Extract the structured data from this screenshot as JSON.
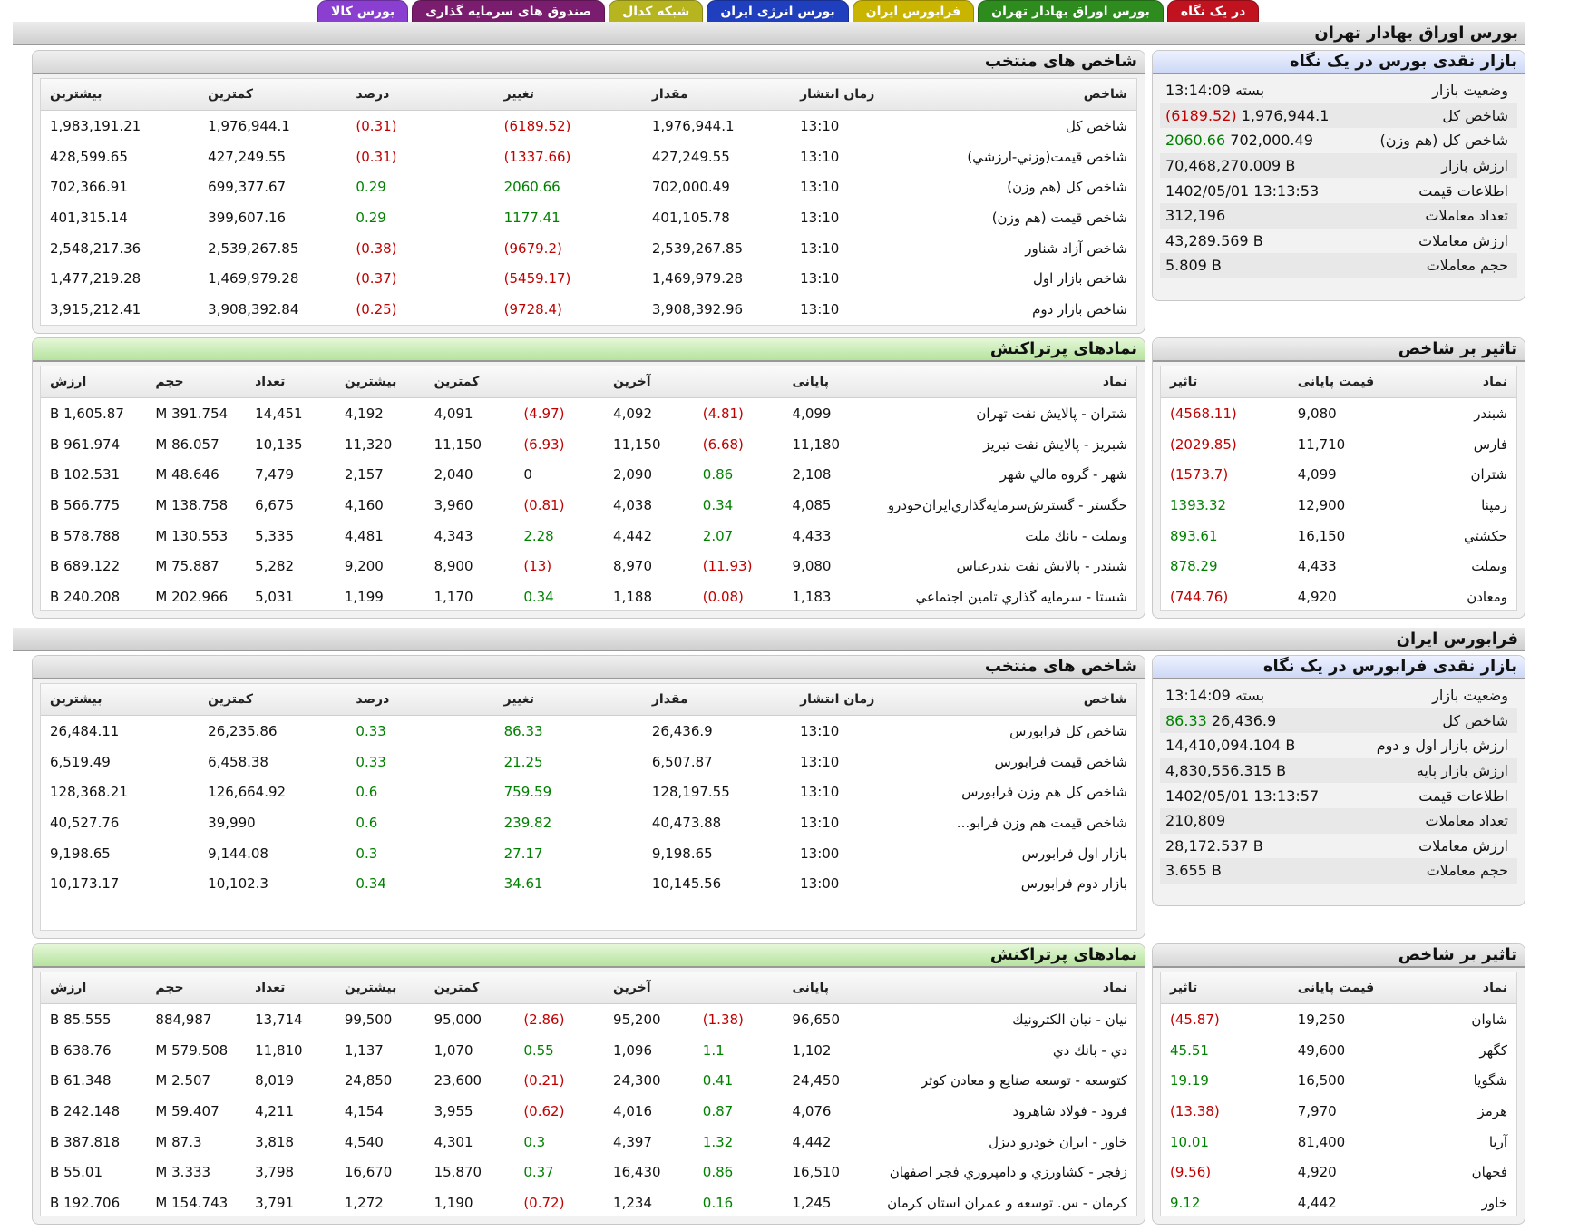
{
  "tabs": [
    {
      "label": "در یک نگاه",
      "color": "#c1121f"
    },
    {
      "label": "بورس اوراق بهادار تهران",
      "color": "#2e8b1e"
    },
    {
      "label": "فرابورس ایران",
      "color": "#c9b400"
    },
    {
      "label": "بورس انرژی ایران",
      "color": "#1f3fbf"
    },
    {
      "label": "شبکه کدال",
      "color": "#b7b51f"
    },
    {
      "label": "صندوق های سرمایه گذاری",
      "color": "#7a1d6e"
    },
    {
      "label": "بورس کالا",
      "color": "#8a3fd1"
    }
  ],
  "tse": {
    "section_title": "بورس اوراق بهادار تهران",
    "summary": {
      "title": "بازار نقدی بورس در یک نگاه",
      "rows": [
        {
          "label": "وضعیت بازار",
          "value": "بسته 13:14:09",
          "change": ""
        },
        {
          "label": "شاخص کل",
          "value": "1,976,944.1",
          "change": "(6189.52)",
          "dir": "neg"
        },
        {
          "label": "شاخص کل (هم وزن)",
          "value": "702,000.49",
          "change": "2060.66",
          "dir": "pos"
        },
        {
          "label": "ارزش بازار",
          "value": "70,468,270.009 B",
          "change": ""
        },
        {
          "label": "اطلاعات قیمت",
          "value": "1402/05/01 13:13:53",
          "change": ""
        },
        {
          "label": "تعداد معاملات",
          "value": "312,196",
          "change": ""
        },
        {
          "label": "ارزش معاملات",
          "value": "43,289.569 B",
          "change": ""
        },
        {
          "label": "حجم معاملات",
          "value": "5.809 B",
          "change": ""
        }
      ]
    },
    "indices": {
      "title": "شاخص های منتخب",
      "headers": [
        "شاخص",
        "زمان انتشار",
        "مقدار",
        "تغییر",
        "درصد",
        "کمترین",
        "بیشترین"
      ],
      "rows": [
        {
          "name": "شاخص کل",
          "time": "13:10",
          "value": "1,976,944.1",
          "change": "(6189.52)",
          "pct": "(0.31)",
          "min": "1,976,944.1",
          "max": "1,983,191.21",
          "dir": "neg"
        },
        {
          "name": "شاخص قيمت(وزني-ارزشي)",
          "time": "13:10",
          "value": "427,249.55",
          "change": "(1337.66)",
          "pct": "(0.31)",
          "min": "427,249.55",
          "max": "428,599.65",
          "dir": "neg"
        },
        {
          "name": "شاخص کل (هم وزن)",
          "time": "13:10",
          "value": "702,000.49",
          "change": "2060.66",
          "pct": "0.29",
          "min": "699,377.67",
          "max": "702,366.91",
          "dir": "pos"
        },
        {
          "name": "شاخص قيمت (هم وزن)",
          "time": "13:10",
          "value": "401,105.78",
          "change": "1177.41",
          "pct": "0.29",
          "min": "399,607.16",
          "max": "401,315.14",
          "dir": "pos"
        },
        {
          "name": "شاخص آزاد شناور",
          "time": "13:10",
          "value": "2,539,267.85",
          "change": "(9679.2)",
          "pct": "(0.38)",
          "min": "2,539,267.85",
          "max": "2,548,217.36",
          "dir": "neg"
        },
        {
          "name": "شاخص بازار اول",
          "time": "13:10",
          "value": "1,469,979.28",
          "change": "(5459.17)",
          "pct": "(0.37)",
          "min": "1,469,979.28",
          "max": "1,477,219.28",
          "dir": "neg"
        },
        {
          "name": "شاخص بازار دوم",
          "time": "13:10",
          "value": "3,908,392.96",
          "change": "(9728.4)",
          "pct": "(0.25)",
          "min": "3,908,392.84",
          "max": "3,915,212.41",
          "dir": "neg"
        }
      ]
    },
    "impact": {
      "title": "تاثیر بر شاخص",
      "headers": [
        "نماد",
        "قیمت پایانی",
        "تاثیر"
      ],
      "rows": [
        {
          "sym": "شبندر",
          "price": "9,080",
          "impact": "(4568.11)",
          "dir": "neg"
        },
        {
          "sym": "فارس",
          "price": "11,710",
          "impact": "(2029.85)",
          "dir": "neg"
        },
        {
          "sym": "شتران",
          "price": "4,099",
          "impact": "(1573.7)",
          "dir": "neg"
        },
        {
          "sym": "رمپنا",
          "price": "12,900",
          "impact": "1393.32",
          "dir": "pos"
        },
        {
          "sym": "حکشتي",
          "price": "16,150",
          "impact": "893.61",
          "dir": "pos"
        },
        {
          "sym": "وبملت",
          "price": "4,433",
          "impact": "878.29",
          "dir": "pos"
        },
        {
          "sym": "ومعادن",
          "price": "4,920",
          "impact": "(744.76)",
          "dir": "neg"
        }
      ]
    },
    "active": {
      "title": "نمادهای پرتراکنش",
      "headers": [
        "نماد",
        "پایانی",
        "",
        "آخرین",
        "",
        "کمترین",
        "بیشترین",
        "تعداد",
        "حجم",
        "ارزش"
      ],
      "rows": [
        {
          "sym": "شتران - پالايش نفت تهران",
          "close": "4,099",
          "cchg": "(4.81)",
          "cdir": "neg",
          "last": "4,092",
          "lchg": "(4.97)",
          "ldir": "neg",
          "min": "4,091",
          "max": "4,192",
          "count": "14,451",
          "vol": "391.754 M",
          "val": "1,605.87 B"
        },
        {
          "sym": "شبريز - پالايش نفت تبريز",
          "close": "11,180",
          "cchg": "(6.68)",
          "cdir": "neg",
          "last": "11,150",
          "lchg": "(6.93)",
          "ldir": "neg",
          "min": "11,150",
          "max": "11,320",
          "count": "10,135",
          "vol": "86.057 M",
          "val": "961.974 B"
        },
        {
          "sym": "شهر - گروه مالي شهر",
          "close": "2,108",
          "cchg": "0.86",
          "cdir": "pos",
          "last": "2,090",
          "lchg": "0",
          "ldir": "",
          "min": "2,040",
          "max": "2,157",
          "count": "7,479",
          "vol": "48.646 M",
          "val": "102.531 B"
        },
        {
          "sym": "خگستر - گسترش‌سرمايه‌گذاري‌ايران‌خودرو",
          "close": "4,085",
          "cchg": "0.34",
          "cdir": "pos",
          "last": "4,038",
          "lchg": "(0.81)",
          "ldir": "neg",
          "min": "3,960",
          "max": "4,160",
          "count": "6,675",
          "vol": "138.758 M",
          "val": "566.775 B"
        },
        {
          "sym": "وبملت - بانك ملت",
          "close": "4,433",
          "cchg": "2.07",
          "cdir": "pos",
          "last": "4,442",
          "lchg": "2.28",
          "ldir": "pos",
          "min": "4,343",
          "max": "4,481",
          "count": "5,335",
          "vol": "130.553 M",
          "val": "578.788 B"
        },
        {
          "sym": "شبندر - پالايش نفت بندرعباس",
          "close": "9,080",
          "cchg": "(11.93)",
          "cdir": "neg",
          "last": "8,970",
          "lchg": "(13)",
          "ldir": "neg",
          "min": "8,900",
          "max": "9,200",
          "count": "5,282",
          "vol": "75.887 M",
          "val": "689.122 B"
        },
        {
          "sym": "شستا - سرمايه گذاري تامين اجتماعي",
          "close": "1,183",
          "cchg": "(0.08)",
          "cdir": "neg",
          "last": "1,188",
          "lchg": "0.34",
          "ldir": "pos",
          "min": "1,170",
          "max": "1,199",
          "count": "5,031",
          "vol": "202.966 M",
          "val": "240.208 B"
        }
      ]
    }
  },
  "ifb": {
    "section_title": "فرابورس ایران",
    "summary": {
      "title": "بازار نقدی فرابورس در یک نگاه",
      "rows": [
        {
          "label": "وضعیت بازار",
          "value": "بسته 13:14:09",
          "change": ""
        },
        {
          "label": "شاخص کل",
          "value": "26,436.9",
          "change": "86.33",
          "dir": "pos"
        },
        {
          "label": "ارزش بازار اول و دوم",
          "value": "14,410,094.104 B",
          "change": ""
        },
        {
          "label": "ارزش بازار پایه",
          "value": "4,830,556.315 B",
          "change": ""
        },
        {
          "label": "اطلاعات قیمت",
          "value": "1402/05/01 13:13:57",
          "change": ""
        },
        {
          "label": "تعداد معاملات",
          "value": "210,809",
          "change": ""
        },
        {
          "label": "ارزش معاملات",
          "value": "28,172.537 B",
          "change": ""
        },
        {
          "label": "حجم معاملات",
          "value": "3.655 B",
          "change": ""
        }
      ]
    },
    "indices": {
      "title": "شاخص های منتخب",
      "headers": [
        "شاخص",
        "زمان انتشار",
        "مقدار",
        "تغییر",
        "درصد",
        "کمترین",
        "بیشترین"
      ],
      "rows": [
        {
          "name": "شاخص کل فرابورس",
          "time": "13:10",
          "value": "26,436.9",
          "change": "86.33",
          "pct": "0.33",
          "min": "26,235.86",
          "max": "26,484.11",
          "dir": "pos"
        },
        {
          "name": "شاخص قیمت فرابورس",
          "time": "13:10",
          "value": "6,507.87",
          "change": "21.25",
          "pct": "0.33",
          "min": "6,458.38",
          "max": "6,519.49",
          "dir": "pos"
        },
        {
          "name": "شاخص کل هم وزن فرابورس",
          "time": "13:10",
          "value": "128,197.55",
          "change": "759.59",
          "pct": "0.6",
          "min": "126,664.92",
          "max": "128,368.21",
          "dir": "pos"
        },
        {
          "name": "شاخص قیمت هم وزن فرابو...",
          "time": "13:10",
          "value": "40,473.88",
          "change": "239.82",
          "pct": "0.6",
          "min": "39,990",
          "max": "40,527.76",
          "dir": "pos"
        },
        {
          "name": "بازار اول فرابورس",
          "time": "13:00",
          "value": "9,198.65",
          "change": "27.17",
          "pct": "0.3",
          "min": "9,144.08",
          "max": "9,198.65",
          "dir": "pos"
        },
        {
          "name": "بازار دوم فرابورس",
          "time": "13:00",
          "value": "10,145.56",
          "change": "34.61",
          "pct": "0.34",
          "min": "10,102.3",
          "max": "10,173.17",
          "dir": "pos"
        }
      ]
    },
    "impact": {
      "title": "تاثیر بر شاخص",
      "headers": [
        "نماد",
        "قیمت پایانی",
        "تاثیر"
      ],
      "rows": [
        {
          "sym": "شاوان",
          "price": "19,250",
          "impact": "(45.87)",
          "dir": "neg"
        },
        {
          "sym": "کگهر",
          "price": "49,600",
          "impact": "45.51",
          "dir": "pos"
        },
        {
          "sym": "شگویا",
          "price": "16,500",
          "impact": "19.19",
          "dir": "pos"
        },
        {
          "sym": "هرمز",
          "price": "7,970",
          "impact": "(13.38)",
          "dir": "neg"
        },
        {
          "sym": "آریا",
          "price": "81,400",
          "impact": "10.01",
          "dir": "pos"
        },
        {
          "sym": "فجهان",
          "price": "4,920",
          "impact": "(9.56)",
          "dir": "neg"
        },
        {
          "sym": "خاور",
          "price": "4,442",
          "impact": "9.12",
          "dir": "pos"
        }
      ]
    },
    "active": {
      "title": "نمادهای پرتراکنش",
      "headers": [
        "نماد",
        "پایانی",
        "",
        "آخرین",
        "",
        "کمترین",
        "بیشترین",
        "تعداد",
        "حجم",
        "ارزش"
      ],
      "rows": [
        {
          "sym": "نيان - نيان الكترونيك",
          "close": "96,650",
          "cchg": "(1.38)",
          "cdir": "neg",
          "last": "95,200",
          "lchg": "(2.86)",
          "ldir": "neg",
          "min": "95,000",
          "max": "99,500",
          "count": "13,714",
          "vol": "884,987",
          "val": "85.555 B"
        },
        {
          "sym": "دي - بانك دي",
          "close": "1,102",
          "cchg": "1.1",
          "cdir": "pos",
          "last": "1,096",
          "lchg": "0.55",
          "ldir": "pos",
          "min": "1,070",
          "max": "1,137",
          "count": "11,810",
          "vol": "579.508 M",
          "val": "638.76 B"
        },
        {
          "sym": "كتوسعه - توسعه صنايع و معادن كوثر",
          "close": "24,450",
          "cchg": "0.41",
          "cdir": "pos",
          "last": "24,300",
          "lchg": "(0.21)",
          "ldir": "neg",
          "min": "23,600",
          "max": "24,850",
          "count": "8,019",
          "vol": "2.507 M",
          "val": "61.348 B"
        },
        {
          "sym": "فرود - فولاد شاهرود",
          "close": "4,076",
          "cchg": "0.87",
          "cdir": "pos",
          "last": "4,016",
          "lchg": "(0.62)",
          "ldir": "neg",
          "min": "3,955",
          "max": "4,154",
          "count": "4,211",
          "vol": "59.407 M",
          "val": "242.148 B"
        },
        {
          "sym": "خاور - ايران خودرو ديزل",
          "close": "4,442",
          "cchg": "1.32",
          "cdir": "pos",
          "last": "4,397",
          "lchg": "0.3",
          "ldir": "pos",
          "min": "4,301",
          "max": "4,540",
          "count": "3,818",
          "vol": "87.3 M",
          "val": "387.818 B"
        },
        {
          "sym": "زفجر - كشاورزي و دامپروري فجر اصفهان",
          "close": "16,510",
          "cchg": "0.86",
          "cdir": "pos",
          "last": "16,430",
          "lchg": "0.37",
          "ldir": "pos",
          "min": "15,870",
          "max": "16,670",
          "count": "3,798",
          "vol": "3.333 M",
          "val": "55.01 B"
        },
        {
          "sym": "كرمان - س. توسعه و عمران استان كرمان",
          "close": "1,245",
          "cchg": "0.16",
          "cdir": "pos",
          "last": "1,234",
          "lchg": "(0.72)",
          "ldir": "neg",
          "min": "1,190",
          "max": "1,272",
          "count": "3,791",
          "vol": "154.743 M",
          "val": "192.706 B"
        }
      ]
    }
  }
}
